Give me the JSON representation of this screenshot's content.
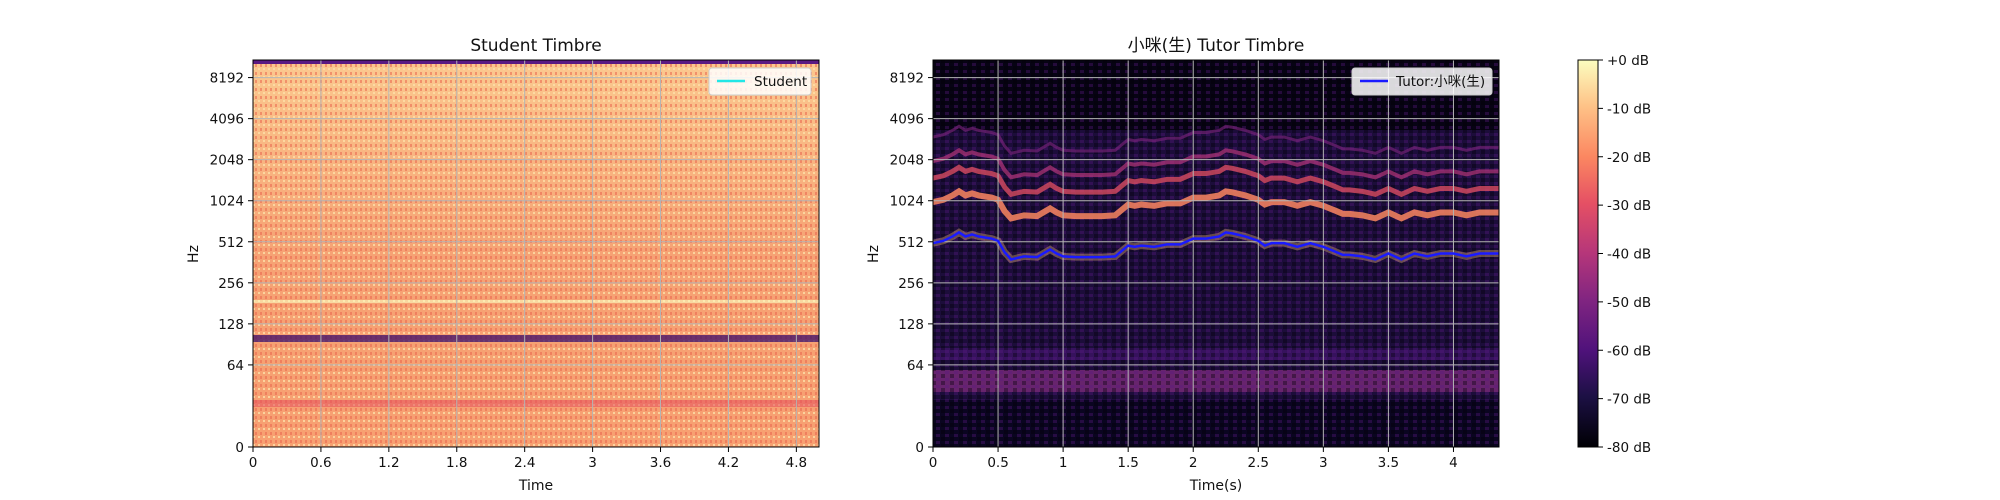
{
  "chart_data": [
    {
      "type": "heatmap",
      "subtype": "spectrogram",
      "title": "Student Timbre",
      "xlabel": "Time",
      "ylabel": "Hz",
      "x_ticks": [
        "0",
        "0.6",
        "1.2",
        "1.8",
        "2.4",
        "3",
        "3.6",
        "4.2",
        "4.8"
      ],
      "x_tick_values": [
        0,
        0.6,
        1.2,
        1.8,
        2.4,
        3.0,
        3.6,
        4.2,
        4.8
      ],
      "xlim": [
        0,
        5.0
      ],
      "y_scale": "log2",
      "y_ticks": [
        "0",
        "64",
        "128",
        "256",
        "512",
        "1024",
        "2048",
        "4096",
        "8192"
      ],
      "y_tick_values": [
        0,
        64,
        128,
        256,
        512,
        1024,
        2048,
        4096,
        8192
      ],
      "ylim": [
        0,
        11025
      ],
      "grid": true,
      "colormap": "magma",
      "legend": {
        "position": "top-right",
        "entries": [
          {
            "name": "Student",
            "color": "#22e6e6"
          }
        ]
      },
      "series": [
        {
          "name": "Student",
          "color": "#22e6e6",
          "x": [],
          "y": []
        }
      ]
    },
    {
      "type": "heatmap",
      "subtype": "spectrogram",
      "title": "小咪(生) Tutor Timbre",
      "xlabel": "Time(s)",
      "ylabel": "Hz",
      "x_ticks": [
        "0",
        "0.5",
        "1",
        "1.5",
        "2",
        "2.5",
        "3",
        "3.5",
        "4"
      ],
      "x_tick_values": [
        0,
        0.5,
        1.0,
        1.5,
        2.0,
        2.5,
        3.0,
        3.5,
        4.0
      ],
      "xlim": [
        0,
        4.35
      ],
      "y_scale": "log2",
      "y_ticks": [
        "0",
        "64",
        "128",
        "256",
        "512",
        "1024",
        "2048",
        "4096",
        "8192"
      ],
      "y_tick_values": [
        0,
        64,
        128,
        256,
        512,
        1024,
        2048,
        4096,
        8192
      ],
      "ylim": [
        0,
        11025
      ],
      "grid": true,
      "colormap": "magma",
      "legend": {
        "position": "top-right",
        "entries": [
          {
            "name": "Tutor:小咪(生)",
            "color": "#1a1aff"
          }
        ]
      },
      "series": [
        {
          "name": "Tutor:小咪(生)",
          "color": "#1a1aff",
          "x": [
            0.0,
            0.08,
            0.15,
            0.2,
            0.25,
            0.3,
            0.35,
            0.45,
            0.5,
            0.55,
            0.6,
            0.7,
            0.8,
            0.9,
            0.95,
            1.0,
            1.1,
            1.2,
            1.3,
            1.4,
            1.5,
            1.55,
            1.6,
            1.7,
            1.8,
            1.9,
            2.0,
            2.1,
            2.2,
            2.25,
            2.3,
            2.4,
            2.5,
            2.55,
            2.6,
            2.7,
            2.8,
            2.9,
            3.0,
            3.1,
            3.15,
            3.2,
            3.3,
            3.4,
            3.5,
            3.6,
            3.7,
            3.8,
            3.9,
            4.0,
            4.1,
            4.2,
            4.35
          ],
          "y": [
            500,
            520,
            560,
            600,
            560,
            580,
            560,
            540,
            520,
            430,
            380,
            400,
            395,
            450,
            420,
            400,
            395,
            395,
            395,
            400,
            480,
            470,
            480,
            470,
            490,
            490,
            540,
            540,
            560,
            600,
            590,
            560,
            520,
            480,
            500,
            500,
            470,
            500,
            470,
            430,
            410,
            410,
            400,
            380,
            420,
            380,
            420,
            400,
            420,
            420,
            400,
            420,
            420
          ]
        }
      ]
    }
  ],
  "colorbar": {
    "ticks": [
      "+0 dB",
      "-10 dB",
      "-20 dB",
      "-30 dB",
      "-40 dB",
      "-50 dB",
      "-60 dB",
      "-70 dB",
      "-80 dB"
    ],
    "range": [
      -80,
      0
    ]
  },
  "colors": {
    "grid": "#b4b4b4",
    "axis": "#000000",
    "student_line": "#22e6e6",
    "tutor_line": "#1a1aff"
  }
}
